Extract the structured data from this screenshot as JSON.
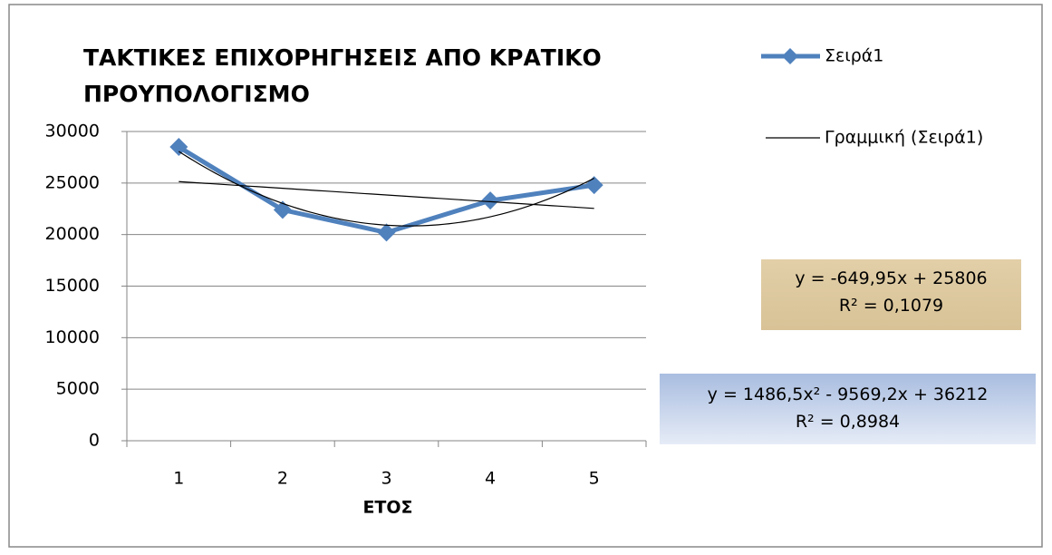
{
  "chart_data": {
    "type": "line",
    "title": "ΤΑΚΤΙΚΕΣ ΕΠΙΧΟΡΗΓΗΣΕΙΣ ΑΠΟ ΚΡΑΤΙΚΟ ΠΡΟΥΠΟΛΟΓΙΣΜΟ",
    "x_label": "ΕΤΟΣ",
    "categories": [
      "1",
      "2",
      "3",
      "4",
      "5"
    ],
    "series": [
      {
        "name": "Σειρά1",
        "color": "#4f81bd",
        "values": [
          28500,
          22400,
          20200,
          23300,
          24800
        ]
      }
    ],
    "trendlines": [
      {
        "name": "Γραμμική (Σειρά1)",
        "order": 1,
        "equation": "y = -649,95x + 25806",
        "r2": "R² = 0,1079"
      },
      {
        "order": 2,
        "equation": "y = 1486,5x² - 9569,2x + 36212",
        "r2": "R² = 0,8984"
      }
    ],
    "ylim": [
      0,
      30000
    ],
    "yticks": [
      0,
      5000,
      10000,
      15000,
      20000,
      25000,
      30000
    ],
    "grid": true
  }
}
